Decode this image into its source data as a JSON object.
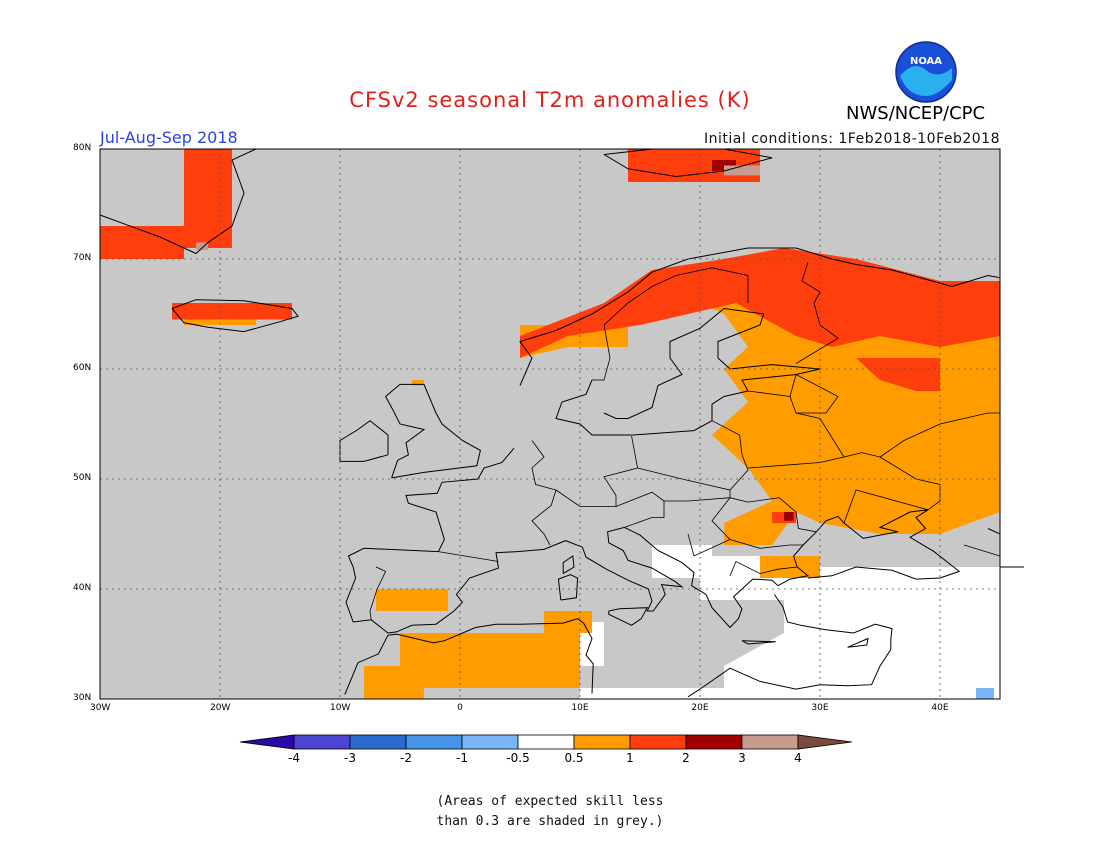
{
  "header": {
    "title": "CFSv2 seasonal T2m anomalies (K)",
    "season": "Jul-Aug-Sep 2018",
    "initial_conditions": "Initial conditions: 1Feb2018-10Feb2018",
    "agency": "NWS/NCEP/CPC",
    "logo_text": "NOAA"
  },
  "map": {
    "lat_labels": [
      "80N",
      "70N",
      "60N",
      "50N",
      "40N",
      "30N"
    ],
    "lon_labels": [
      "30W",
      "20W",
      "10W",
      "0",
      "10E",
      "20E",
      "30E",
      "40E"
    ],
    "extent": {
      "lon_min": -30,
      "lon_max": 45,
      "lat_min": 30,
      "lat_max": 80
    },
    "colors": {
      "grey": "#c8c8c8",
      "white": "#ffffff",
      "c05_1": "#ff9d00",
      "c1_2": "#ff3e0d",
      "c2_3": "#a00000",
      "c3_4": "#c79c8f",
      "neg05_1": "#7ab6f7"
    }
  },
  "legend": {
    "ticks": [
      "-4",
      "-3",
      "-2",
      "-1",
      "-0.5",
      "0.5",
      "1",
      "2",
      "3",
      "4"
    ],
    "colors": [
      "#2a0aa8",
      "#4b45d2",
      "#2d6ad0",
      "#4694e8",
      "#7ab6f7",
      "#ffffff",
      "#ff9d00",
      "#ff3e0d",
      "#a00000",
      "#c79c8f",
      "#7a4a3c"
    ]
  },
  "footnote": {
    "line1": "(Areas of expected skill less",
    "line2": "than 0.3 are shaded in grey.)"
  }
}
